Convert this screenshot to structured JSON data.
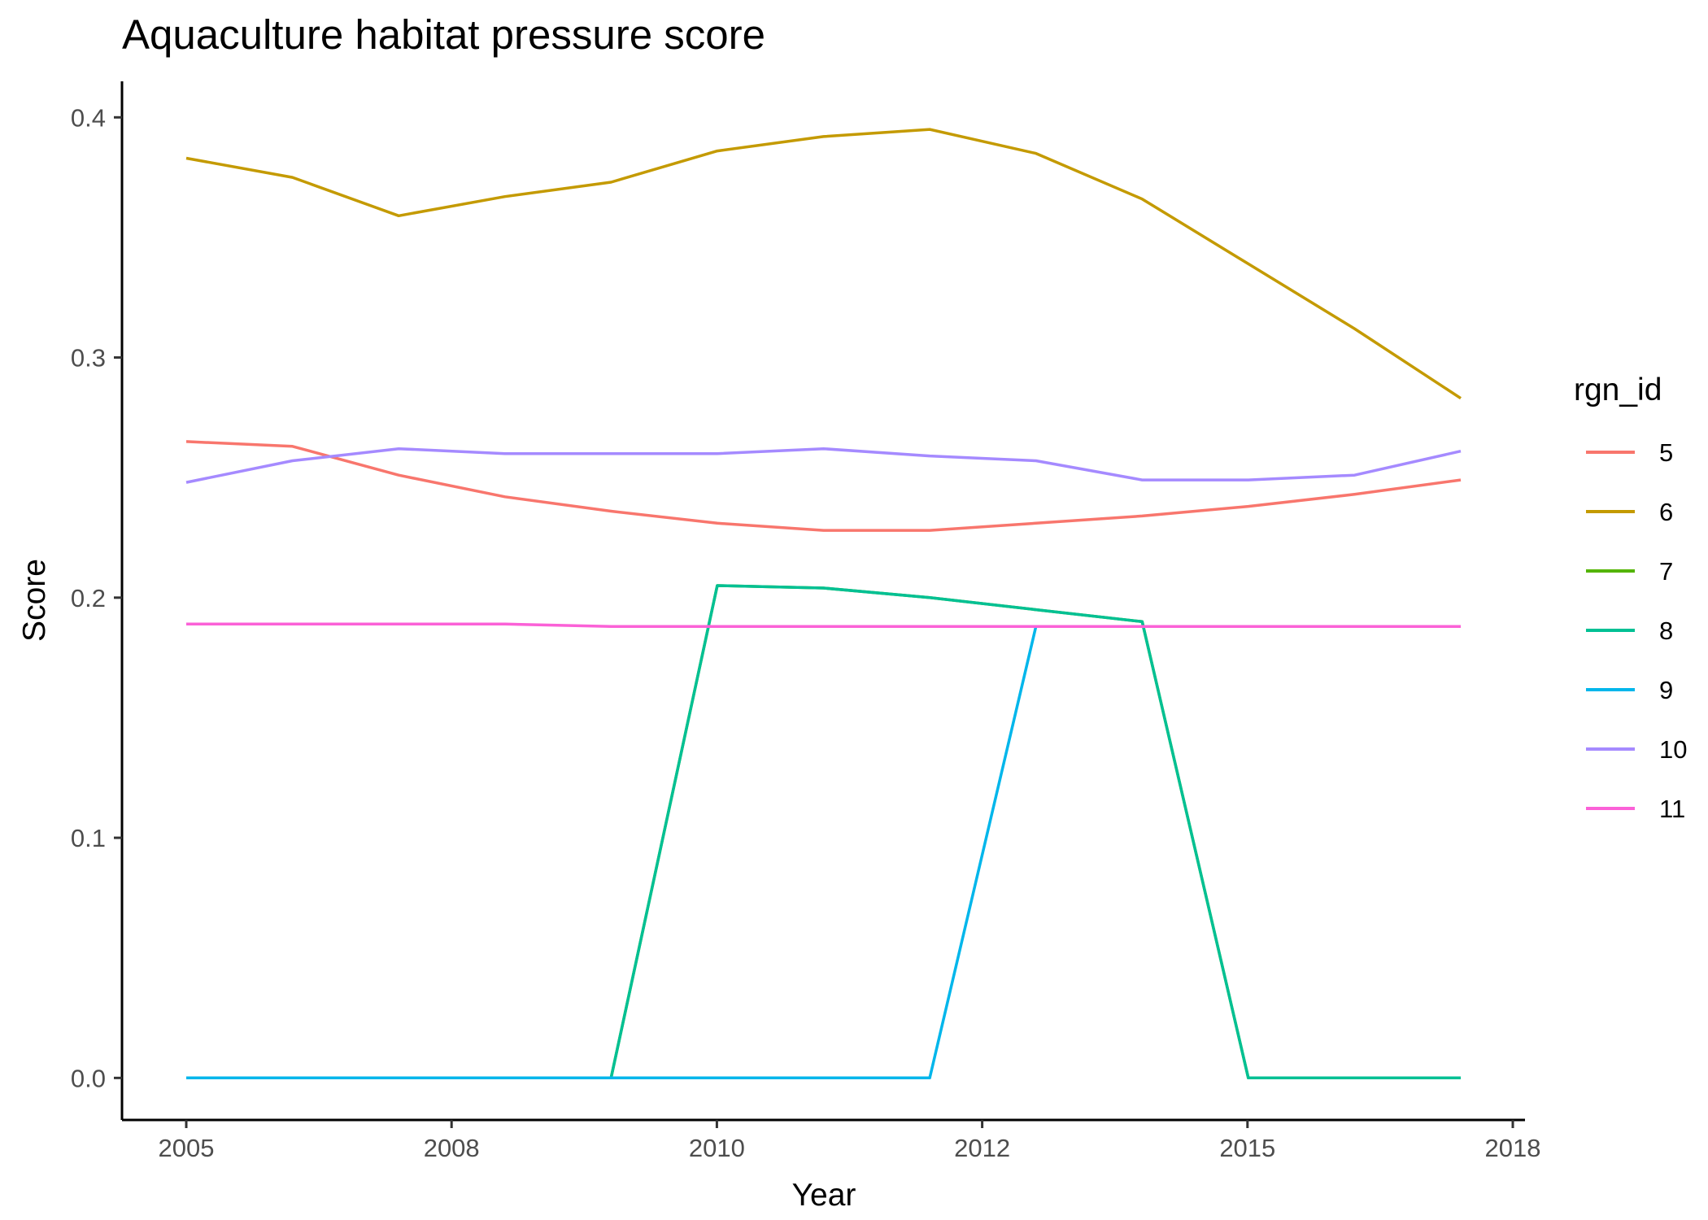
{
  "chart_data": {
    "type": "line",
    "title": "Aquaculture habitat pressure score",
    "xlabel": "Year",
    "ylabel": "Score",
    "x_tick_labels": [
      "2005",
      "2008",
      "2010",
      "2012",
      "2015",
      "2018"
    ],
    "y_ticks": [
      0.0,
      0.1,
      0.2,
      0.3,
      0.4
    ],
    "y_tick_labels": [
      "0.0",
      "0.1",
      "0.2",
      "0.3",
      "0.4"
    ],
    "ylim": [
      -0.0175,
      0.415
    ],
    "legend_title": "rgn_id",
    "legend_position": "right",
    "grid": false,
    "x": [
      "2005",
      "2006",
      "2007",
      "2008",
      "2009",
      "2010",
      "2011",
      "2012",
      "2013",
      "2014",
      "2015",
      "2016",
      "2017"
    ],
    "series": [
      {
        "name": "5",
        "color": "#F8766D",
        "values": [
          0.265,
          0.263,
          0.251,
          0.242,
          0.236,
          0.231,
          0.228,
          0.228,
          0.231,
          0.234,
          0.238,
          0.243,
          0.249
        ]
      },
      {
        "name": "6",
        "color": "#C49A00",
        "values": [
          0.383,
          0.375,
          0.359,
          0.367,
          0.373,
          0.386,
          0.392,
          0.395,
          0.385,
          0.366,
          0.339,
          0.312,
          0.283
        ]
      },
      {
        "name": "7",
        "color": "#53B400",
        "values": [
          0,
          0,
          0,
          0,
          0,
          0.205,
          0.204,
          0.2,
          0.195,
          0.19,
          0,
          0,
          0
        ]
      },
      {
        "name": "8",
        "color": "#00C094",
        "values": [
          0,
          0,
          0,
          0,
          0,
          0.205,
          0.204,
          0.2,
          0.195,
          0.19,
          0,
          0,
          0
        ]
      },
      {
        "name": "9",
        "color": "#00B6EB",
        "values": [
          0,
          0,
          0,
          0,
          0,
          0,
          0,
          0,
          0.188,
          0.188,
          0.188,
          0.188,
          0.188
        ]
      },
      {
        "name": "10",
        "color": "#A58AFF",
        "values": [
          0.248,
          0.257,
          0.262,
          0.26,
          0.26,
          0.26,
          0.262,
          0.259,
          0.257,
          0.249,
          0.249,
          0.251,
          0.261
        ]
      },
      {
        "name": "11",
        "color": "#FB61D7",
        "values": [
          0.189,
          0.189,
          0.189,
          0.189,
          0.188,
          0.188,
          0.188,
          0.188,
          0.188,
          0.188,
          0.188,
          0.188,
          0.188
        ]
      }
    ]
  }
}
